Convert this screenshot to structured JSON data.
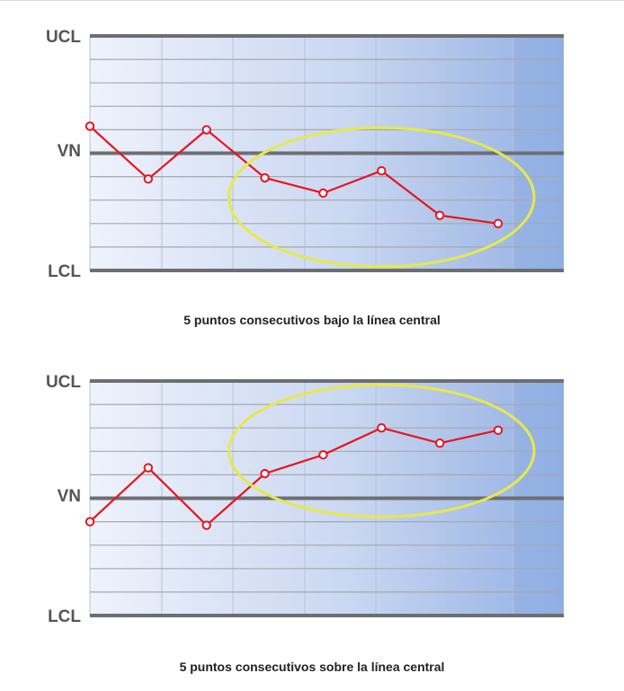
{
  "chart_data": [
    {
      "type": "line",
      "title": "",
      "caption": "5 puntos consecutivos bajo la línea central",
      "control_labels": {
        "ucl": "UCL",
        "center": "VN",
        "lcl": "LCL"
      },
      "ylim": [
        -10,
        10
      ],
      "gridlines": 10,
      "x": [
        1,
        2,
        3,
        4,
        5,
        6,
        7,
        8
      ],
      "values": [
        2.3,
        -2.2,
        2.0,
        -2.1,
        -3.4,
        -1.5,
        -5.3,
        -6.0
      ],
      "highlight": {
        "x_from": 4,
        "x_to": 8,
        "color": "#e8e84a"
      },
      "line_color": "#e8141e",
      "grid": true,
      "legend": false
    },
    {
      "type": "line",
      "title": "",
      "caption": "5 puntos consecutivos sobre la línea central",
      "control_labels": {
        "ucl": "UCL",
        "center": "VN",
        "lcl": "LCL"
      },
      "ylim": [
        -10,
        10
      ],
      "gridlines": 10,
      "x": [
        1,
        2,
        3,
        4,
        5,
        6,
        7,
        8
      ],
      "values": [
        -2.0,
        2.6,
        -2.3,
        2.1,
        3.7,
        6.0,
        4.7,
        5.8
      ],
      "highlight": {
        "x_from": 4,
        "x_to": 8,
        "color": "#e8e84a"
      },
      "line_color": "#e8141e",
      "grid": true,
      "legend": false
    }
  ]
}
